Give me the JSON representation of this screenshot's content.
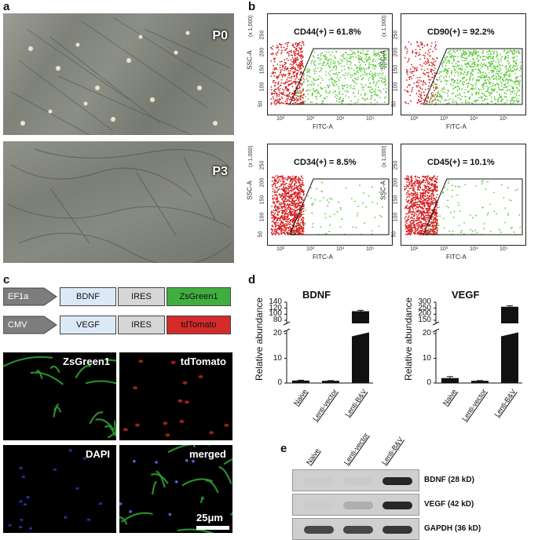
{
  "panels": {
    "a": {
      "letter": "a",
      "images": [
        {
          "tag": "P0"
        },
        {
          "tag": "P3"
        }
      ]
    },
    "b": {
      "letter": "b",
      "xlabel": "FITC-A",
      "ylabel": "SSC-A",
      "y_multiplier": "(x 1,000)",
      "y_ticks": [
        "50",
        "100",
        "150",
        "200",
        "250"
      ],
      "x_ticks": [
        "10²",
        "10³",
        "10⁴",
        "10⁵"
      ],
      "plots": [
        {
          "stat": "CD44(+) = 61.8%",
          "positive_pct": 61.8
        },
        {
          "stat": "CD90(+) = 92.2%",
          "positive_pct": 92.2
        },
        {
          "stat": "CD34(+) = 8.5%",
          "positive_pct": 8.5
        },
        {
          "stat": "CD45(+) = 10.1%",
          "positive_pct": 10.1
        }
      ]
    },
    "c": {
      "letter": "c",
      "constructs": [
        {
          "promoter": "EF1a",
          "gene": "BDNF",
          "ires": "IRES",
          "reporter": "ZsGreen1",
          "reporter_color": "#3fae3f"
        },
        {
          "promoter": "CMV",
          "gene": "VEGF",
          "ires": "IRES",
          "reporter": "tdTomato",
          "reporter_color": "#d52b2b"
        }
      ],
      "fluor": [
        {
          "label": "ZsGreen1",
          "color": "#2f9a34"
        },
        {
          "label": "tdTomato",
          "color": "#b0281f"
        },
        {
          "label": "DAPI",
          "color": "#2a33a8"
        },
        {
          "label": "merged",
          "color": "#2f9a34"
        }
      ],
      "scale_bar": "25μm"
    },
    "d": {
      "letter": "d",
      "ylabel": "Relative abundance"
    },
    "e": {
      "letter": "e",
      "lanes": [
        "Naive",
        "Lenti-vector",
        "Lenti-B&V"
      ],
      "bands": [
        {
          "label": "BDNF (28 kD)",
          "intensity": [
            0.1,
            0.15,
            0.95
          ]
        },
        {
          "label": "VEGF (42 kD)",
          "intensity": [
            0.05,
            0.4,
            0.95
          ]
        },
        {
          "label": "GAPDH (36 kD)",
          "intensity": [
            0.85,
            0.85,
            0.9
          ]
        }
      ]
    }
  },
  "chart_data": [
    {
      "type": "bar",
      "title": "BDNF",
      "ylabel": "Relative abundance",
      "categories": [
        "Naive",
        "Lenti-vector",
        "Lenti-B&V"
      ],
      "values": [
        1.0,
        0.9,
        110
      ],
      "errors": [
        0.15,
        0.1,
        3
      ],
      "axis_break": [
        20,
        80
      ],
      "y_ticks": [
        "0",
        "10",
        "20",
        "80",
        "100",
        "120",
        "140"
      ],
      "color": "#111111"
    },
    {
      "type": "bar",
      "title": "VEGF",
      "ylabel": "Relative abundance",
      "categories": [
        "Naive",
        "Lenti-vector",
        "Lenti-B&V"
      ],
      "values": [
        2.0,
        0.9,
        262
      ],
      "errors": [
        0.6,
        0.1,
        8
      ],
      "axis_break": [
        20,
        150
      ],
      "y_ticks": [
        "0",
        "10",
        "20",
        "150",
        "200",
        "250",
        "300"
      ],
      "color": "#111111"
    }
  ]
}
